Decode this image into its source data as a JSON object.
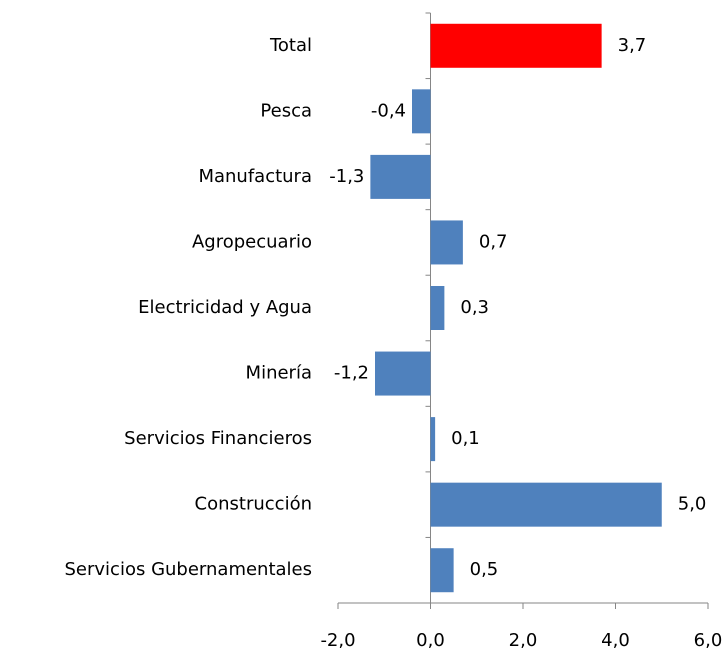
{
  "chart_data": {
    "type": "hbar",
    "categories": [
      "Total",
      "Pesca",
      "Manufactura",
      "Agropecuario",
      "Electricidad y Agua",
      "Minería",
      "Servicios Financieros",
      "Construcción",
      "Servicios Gubernamentales"
    ],
    "values": [
      3.7,
      -0.4,
      -1.3,
      0.7,
      0.3,
      -1.2,
      0.1,
      5.0,
      0.5
    ],
    "value_labels": [
      "3,7",
      "-0,4",
      "-1,3",
      "0,7",
      "0,3",
      "-1,2",
      "0,1",
      "5,0",
      "0,5"
    ],
    "colors": [
      "#ff0000",
      "#4f81bd",
      "#4f81bd",
      "#4f81bd",
      "#4f81bd",
      "#4f81bd",
      "#4f81bd",
      "#4f81bd",
      "#4f81bd"
    ],
    "xlim": [
      -2,
      6
    ],
    "xticks": [
      {
        "value": -2,
        "label": "-2,0"
      },
      {
        "value": 0,
        "label": "0,0"
      },
      {
        "value": 2,
        "label": "2,0"
      },
      {
        "value": 4,
        "label": "4,0"
      },
      {
        "value": 6,
        "label": "6,0"
      }
    ]
  }
}
